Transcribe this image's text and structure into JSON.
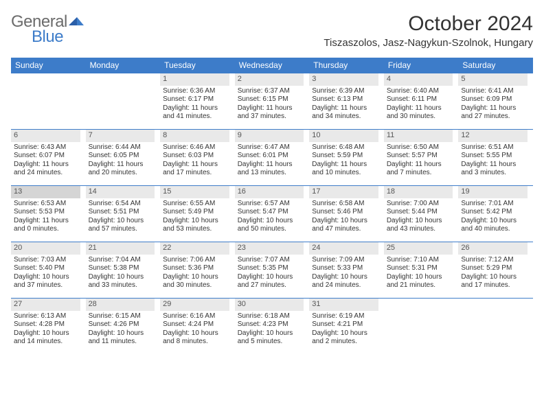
{
  "logo": {
    "text_gray": "General",
    "text_blue": "Blue"
  },
  "title": "October 2024",
  "location": "Tiszaszolos, Jasz-Nagykun-Szolnok, Hungary",
  "colors": {
    "header_bg": "#3d7cc9",
    "daynum_bg": "#e9e9e9",
    "border": "#3d7cc9"
  },
  "day_headers": [
    "Sunday",
    "Monday",
    "Tuesday",
    "Wednesday",
    "Thursday",
    "Friday",
    "Saturday"
  ],
  "weeks": [
    [
      null,
      null,
      {
        "n": "1",
        "sr": "Sunrise: 6:36 AM",
        "ss": "Sunset: 6:17 PM",
        "d1": "Daylight: 11 hours",
        "d2": "and 41 minutes."
      },
      {
        "n": "2",
        "sr": "Sunrise: 6:37 AM",
        "ss": "Sunset: 6:15 PM",
        "d1": "Daylight: 11 hours",
        "d2": "and 37 minutes."
      },
      {
        "n": "3",
        "sr": "Sunrise: 6:39 AM",
        "ss": "Sunset: 6:13 PM",
        "d1": "Daylight: 11 hours",
        "d2": "and 34 minutes."
      },
      {
        "n": "4",
        "sr": "Sunrise: 6:40 AM",
        "ss": "Sunset: 6:11 PM",
        "d1": "Daylight: 11 hours",
        "d2": "and 30 minutes."
      },
      {
        "n": "5",
        "sr": "Sunrise: 6:41 AM",
        "ss": "Sunset: 6:09 PM",
        "d1": "Daylight: 11 hours",
        "d2": "and 27 minutes."
      }
    ],
    [
      {
        "n": "6",
        "sr": "Sunrise: 6:43 AM",
        "ss": "Sunset: 6:07 PM",
        "d1": "Daylight: 11 hours",
        "d2": "and 24 minutes."
      },
      {
        "n": "7",
        "sr": "Sunrise: 6:44 AM",
        "ss": "Sunset: 6:05 PM",
        "d1": "Daylight: 11 hours",
        "d2": "and 20 minutes."
      },
      {
        "n": "8",
        "sr": "Sunrise: 6:46 AM",
        "ss": "Sunset: 6:03 PM",
        "d1": "Daylight: 11 hours",
        "d2": "and 17 minutes."
      },
      {
        "n": "9",
        "sr": "Sunrise: 6:47 AM",
        "ss": "Sunset: 6:01 PM",
        "d1": "Daylight: 11 hours",
        "d2": "and 13 minutes."
      },
      {
        "n": "10",
        "sr": "Sunrise: 6:48 AM",
        "ss": "Sunset: 5:59 PM",
        "d1": "Daylight: 11 hours",
        "d2": "and 10 minutes."
      },
      {
        "n": "11",
        "sr": "Sunrise: 6:50 AM",
        "ss": "Sunset: 5:57 PM",
        "d1": "Daylight: 11 hours",
        "d2": "and 7 minutes."
      },
      {
        "n": "12",
        "sr": "Sunrise: 6:51 AM",
        "ss": "Sunset: 5:55 PM",
        "d1": "Daylight: 11 hours",
        "d2": "and 3 minutes."
      }
    ],
    [
      {
        "n": "13",
        "sr": "Sunrise: 6:53 AM",
        "ss": "Sunset: 5:53 PM",
        "d1": "Daylight: 11 hours",
        "d2": "and 0 minutes.",
        "today": true
      },
      {
        "n": "14",
        "sr": "Sunrise: 6:54 AM",
        "ss": "Sunset: 5:51 PM",
        "d1": "Daylight: 10 hours",
        "d2": "and 57 minutes."
      },
      {
        "n": "15",
        "sr": "Sunrise: 6:55 AM",
        "ss": "Sunset: 5:49 PM",
        "d1": "Daylight: 10 hours",
        "d2": "and 53 minutes."
      },
      {
        "n": "16",
        "sr": "Sunrise: 6:57 AM",
        "ss": "Sunset: 5:47 PM",
        "d1": "Daylight: 10 hours",
        "d2": "and 50 minutes."
      },
      {
        "n": "17",
        "sr": "Sunrise: 6:58 AM",
        "ss": "Sunset: 5:46 PM",
        "d1": "Daylight: 10 hours",
        "d2": "and 47 minutes."
      },
      {
        "n": "18",
        "sr": "Sunrise: 7:00 AM",
        "ss": "Sunset: 5:44 PM",
        "d1": "Daylight: 10 hours",
        "d2": "and 43 minutes."
      },
      {
        "n": "19",
        "sr": "Sunrise: 7:01 AM",
        "ss": "Sunset: 5:42 PM",
        "d1": "Daylight: 10 hours",
        "d2": "and 40 minutes."
      }
    ],
    [
      {
        "n": "20",
        "sr": "Sunrise: 7:03 AM",
        "ss": "Sunset: 5:40 PM",
        "d1": "Daylight: 10 hours",
        "d2": "and 37 minutes."
      },
      {
        "n": "21",
        "sr": "Sunrise: 7:04 AM",
        "ss": "Sunset: 5:38 PM",
        "d1": "Daylight: 10 hours",
        "d2": "and 33 minutes."
      },
      {
        "n": "22",
        "sr": "Sunrise: 7:06 AM",
        "ss": "Sunset: 5:36 PM",
        "d1": "Daylight: 10 hours",
        "d2": "and 30 minutes."
      },
      {
        "n": "23",
        "sr": "Sunrise: 7:07 AM",
        "ss": "Sunset: 5:35 PM",
        "d1": "Daylight: 10 hours",
        "d2": "and 27 minutes."
      },
      {
        "n": "24",
        "sr": "Sunrise: 7:09 AM",
        "ss": "Sunset: 5:33 PM",
        "d1": "Daylight: 10 hours",
        "d2": "and 24 minutes."
      },
      {
        "n": "25",
        "sr": "Sunrise: 7:10 AM",
        "ss": "Sunset: 5:31 PM",
        "d1": "Daylight: 10 hours",
        "d2": "and 21 minutes."
      },
      {
        "n": "26",
        "sr": "Sunrise: 7:12 AM",
        "ss": "Sunset: 5:29 PM",
        "d1": "Daylight: 10 hours",
        "d2": "and 17 minutes."
      }
    ],
    [
      {
        "n": "27",
        "sr": "Sunrise: 6:13 AM",
        "ss": "Sunset: 4:28 PM",
        "d1": "Daylight: 10 hours",
        "d2": "and 14 minutes."
      },
      {
        "n": "28",
        "sr": "Sunrise: 6:15 AM",
        "ss": "Sunset: 4:26 PM",
        "d1": "Daylight: 10 hours",
        "d2": "and 11 minutes."
      },
      {
        "n": "29",
        "sr": "Sunrise: 6:16 AM",
        "ss": "Sunset: 4:24 PM",
        "d1": "Daylight: 10 hours",
        "d2": "and 8 minutes."
      },
      {
        "n": "30",
        "sr": "Sunrise: 6:18 AM",
        "ss": "Sunset: 4:23 PM",
        "d1": "Daylight: 10 hours",
        "d2": "and 5 minutes."
      },
      {
        "n": "31",
        "sr": "Sunrise: 6:19 AM",
        "ss": "Sunset: 4:21 PM",
        "d1": "Daylight: 10 hours",
        "d2": "and 2 minutes."
      },
      null,
      null
    ]
  ]
}
